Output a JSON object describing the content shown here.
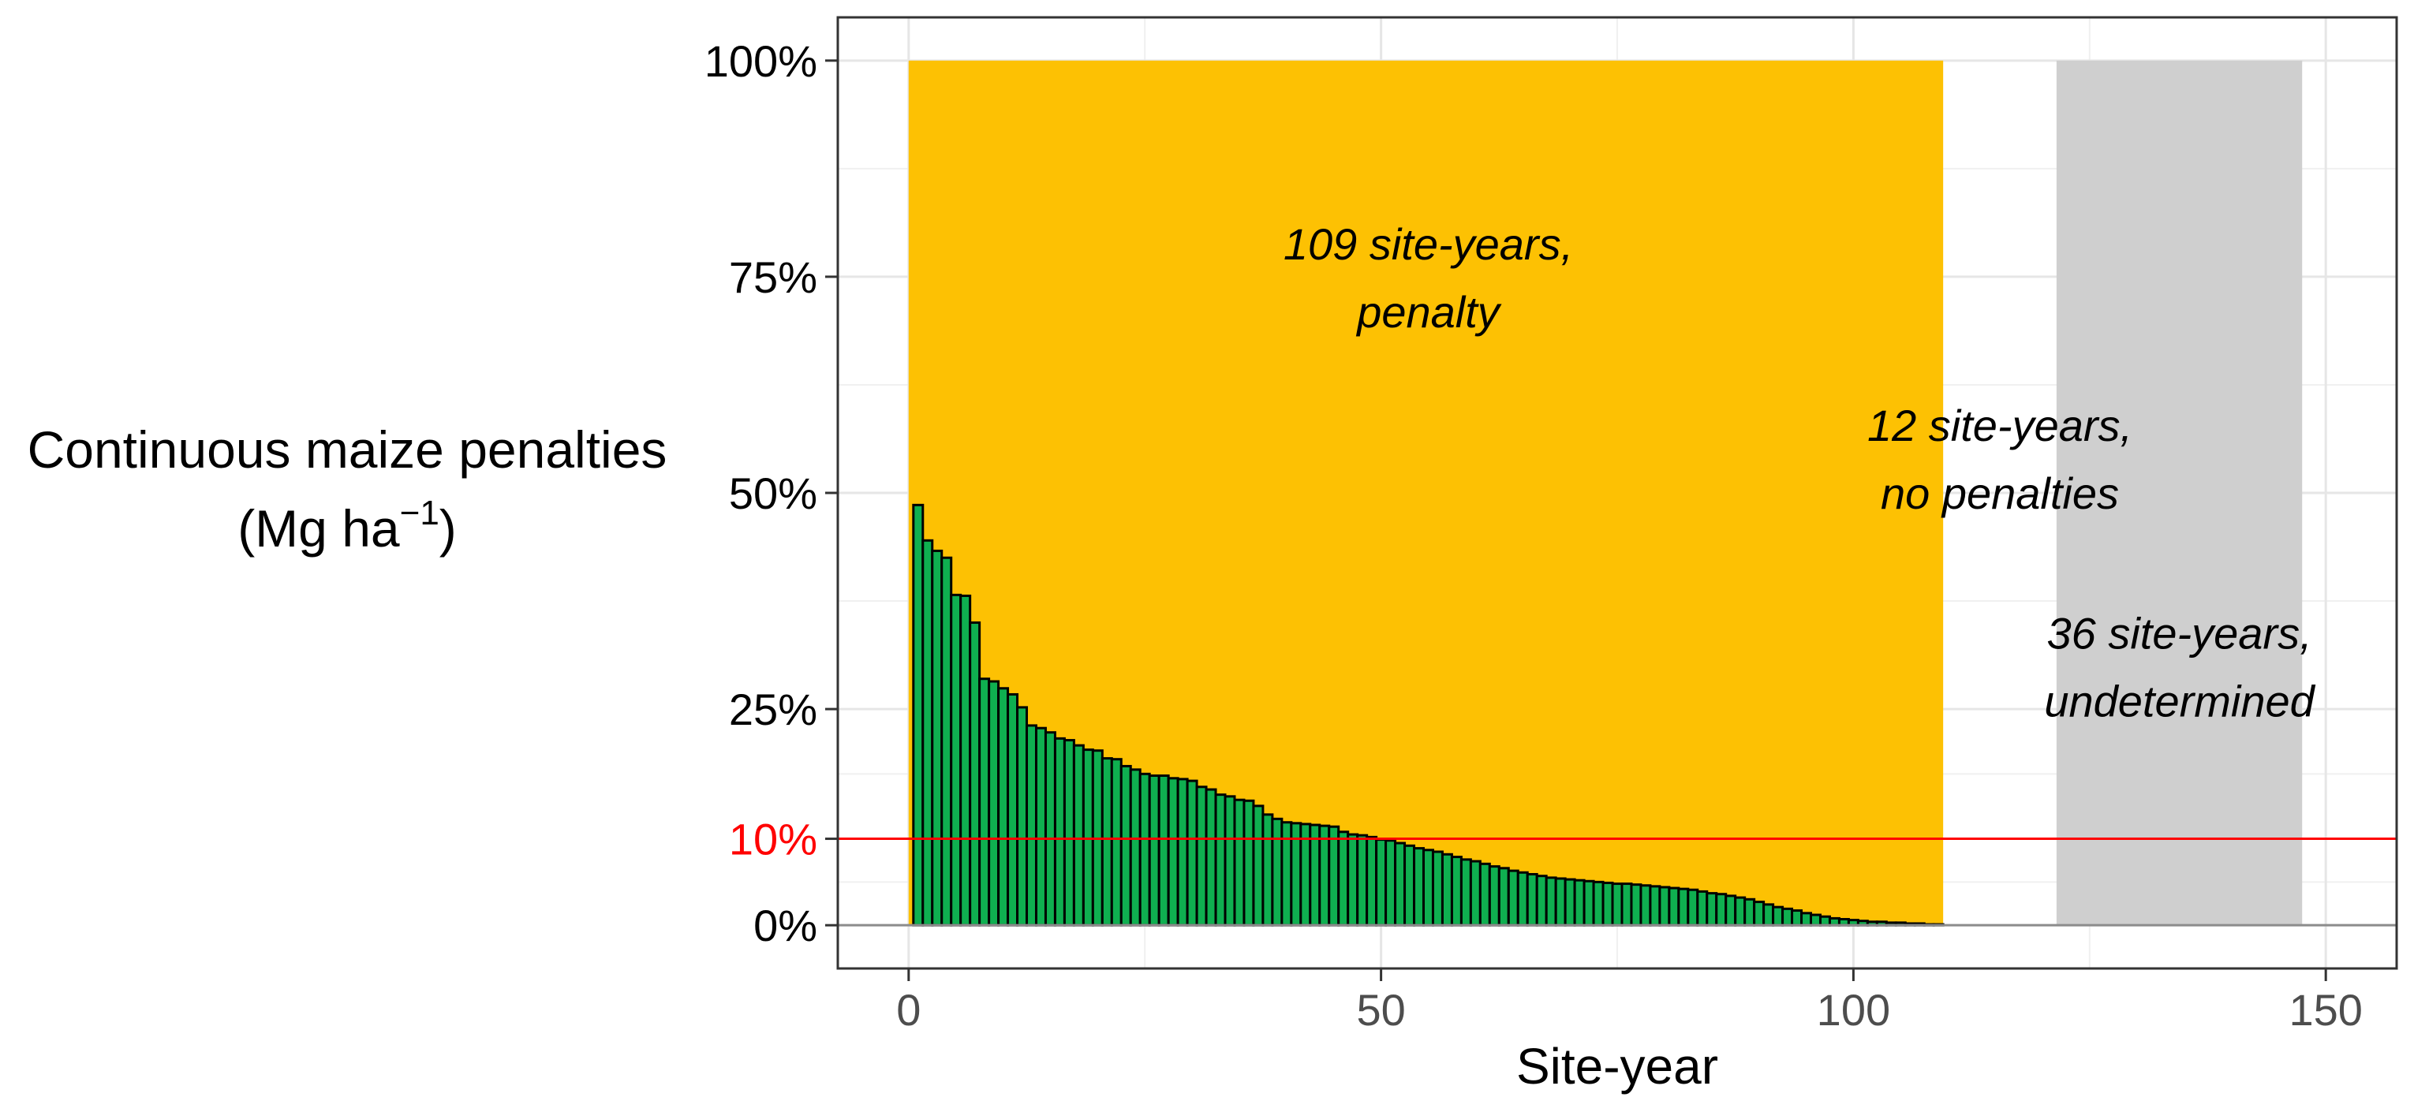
{
  "chart_data": {
    "type": "bar",
    "xlabel": "Site-year",
    "ylabel": {
      "line1": "Continuous maize penalties",
      "line2_prefix": "(Mg  ha",
      "line2_sup": "−1",
      "line2_suffix": ")"
    },
    "xlim": [
      -7.5,
      157.5
    ],
    "ylim": [
      -0.05,
      1.05
    ],
    "xticks": [
      {
        "value": 0,
        "label": "0"
      },
      {
        "value": 50,
        "label": "50"
      },
      {
        "value": 100,
        "label": "100"
      },
      {
        "value": 150,
        "label": "150"
      }
    ],
    "yticks": [
      {
        "value": 0,
        "label": "0%"
      },
      {
        "value": 0.1,
        "label": "10%",
        "color": "#FF0000"
      },
      {
        "value": 0.25,
        "label": "25%"
      },
      {
        "value": 0.5,
        "label": "50%"
      },
      {
        "value": 0.75,
        "label": "75%"
      },
      {
        "value": 1.0,
        "label": "100%"
      }
    ],
    "grid": true,
    "reference_line": {
      "y": 0.1,
      "color": "#FF0000"
    },
    "bar_color": "#0FAF50",
    "bar_outline": "#000000",
    "regions": [
      {
        "x0": 0,
        "x1": 109.5,
        "y0": 0,
        "y1": 1.0,
        "color": "#FDC103"
      },
      {
        "x0": 121.5,
        "x1": 147.5,
        "y0": 0,
        "y1": 1.0,
        "color": "#CFCFCF"
      }
    ],
    "annotations": [
      {
        "lines": [
          "109 site-years,",
          "penalty"
        ],
        "x": 55,
        "y": 0.77
      },
      {
        "lines": [
          "12 site-years,",
          "no penalties"
        ],
        "x": 115.5,
        "y": 0.56
      },
      {
        "lines": [
          "36 site-years,",
          "undetermined"
        ],
        "x": 134.5,
        "y": 0.32
      }
    ],
    "x": [
      1,
      2,
      3,
      4,
      5,
      6,
      7,
      8,
      9,
      10,
      11,
      12,
      13,
      14,
      15,
      16,
      17,
      18,
      19,
      20,
      21,
      22,
      23,
      24,
      25,
      26,
      27,
      28,
      29,
      30,
      31,
      32,
      33,
      34,
      35,
      36,
      37,
      38,
      39,
      40,
      41,
      42,
      43,
      44,
      45,
      46,
      47,
      48,
      49,
      50,
      51,
      52,
      53,
      54,
      55,
      56,
      57,
      58,
      59,
      60,
      61,
      62,
      63,
      64,
      65,
      66,
      67,
      68,
      69,
      70,
      71,
      72,
      73,
      74,
      75,
      76,
      77,
      78,
      79,
      80,
      81,
      82,
      83,
      84,
      85,
      86,
      87,
      88,
      89,
      90,
      91,
      92,
      93,
      94,
      95,
      96,
      97,
      98,
      99,
      100,
      101,
      102,
      103,
      104,
      105,
      106,
      107,
      108,
      109
    ],
    "values": [
      0.486,
      0.445,
      0.433,
      0.425,
      0.382,
      0.381,
      0.35,
      0.285,
      0.282,
      0.274,
      0.267,
      0.252,
      0.231,
      0.228,
      0.223,
      0.216,
      0.214,
      0.208,
      0.203,
      0.202,
      0.193,
      0.192,
      0.184,
      0.18,
      0.175,
      0.173,
      0.173,
      0.17,
      0.169,
      0.167,
      0.16,
      0.157,
      0.151,
      0.149,
      0.145,
      0.144,
      0.138,
      0.128,
      0.123,
      0.119,
      0.118,
      0.117,
      0.116,
      0.115,
      0.114,
      0.108,
      0.105,
      0.104,
      0.102,
      0.099,
      0.098,
      0.095,
      0.092,
      0.089,
      0.087,
      0.085,
      0.082,
      0.079,
      0.076,
      0.074,
      0.071,
      0.068,
      0.066,
      0.063,
      0.061,
      0.059,
      0.057,
      0.055,
      0.054,
      0.053,
      0.052,
      0.051,
      0.05,
      0.049,
      0.048,
      0.048,
      0.047,
      0.046,
      0.045,
      0.044,
      0.043,
      0.042,
      0.041,
      0.039,
      0.037,
      0.036,
      0.034,
      0.032,
      0.03,
      0.027,
      0.024,
      0.021,
      0.019,
      0.017,
      0.014,
      0.012,
      0.01,
      0.008,
      0.007,
      0.006,
      0.005,
      0.004,
      0.004,
      0.003,
      0.003,
      0.002,
      0.002,
      0.001,
      0.001
    ]
  }
}
